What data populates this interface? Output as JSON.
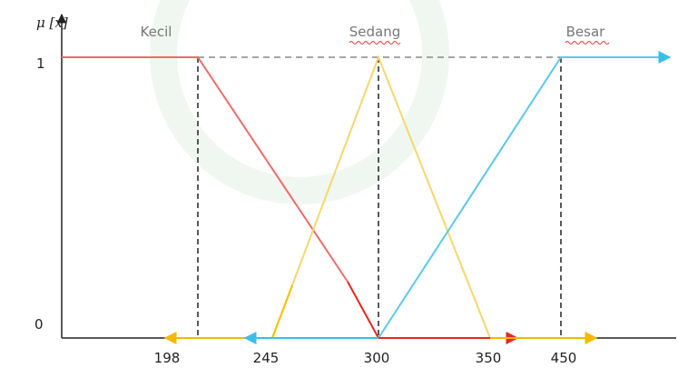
{
  "y_axis": {
    "label": "μ [x]",
    "ticks": [
      "1",
      "0"
    ]
  },
  "sets": [
    {
      "label": "Kecil"
    },
    {
      "label": "Sedang"
    },
    {
      "label": "Besar"
    }
  ],
  "x_axis": {
    "ticks": [
      "198",
      "245",
      "300",
      "350",
      "450"
    ]
  }
}
